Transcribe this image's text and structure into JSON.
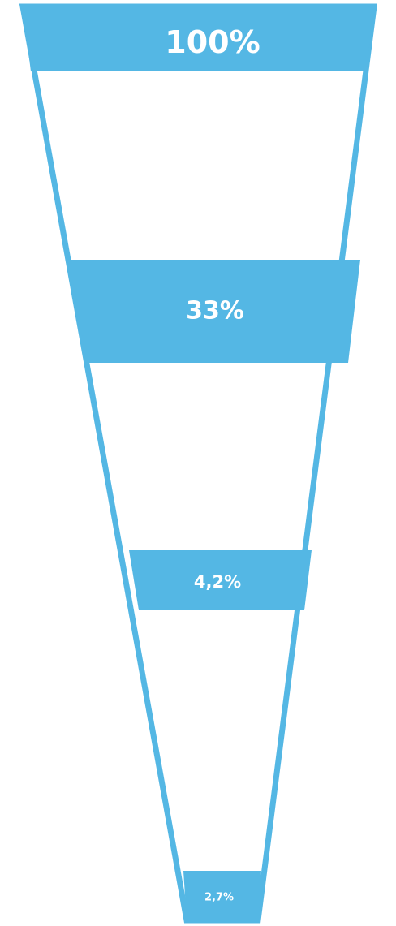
{
  "funnel": {
    "color": "#54b7e4",
    "stages": [
      {
        "label": "100%",
        "value": 100
      },
      {
        "label": "33%",
        "value": 33
      },
      {
        "label": "4,2%",
        "value": 4.2
      },
      {
        "label": "2,7%",
        "value": 2.7
      }
    ]
  }
}
